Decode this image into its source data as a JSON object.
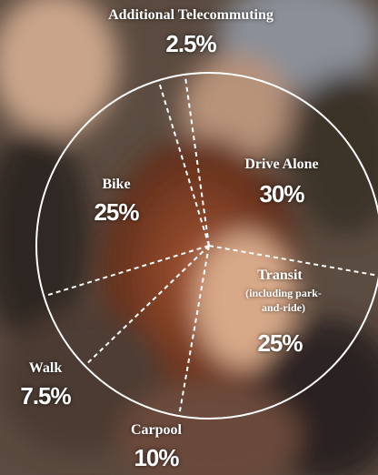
{
  "chart_data": {
    "type": "pie",
    "categories": [
      "Drive Alone",
      "Transit",
      "Carpool",
      "Walk",
      "Bike",
      "Additional Telecommuting"
    ],
    "values": [
      30,
      25,
      10,
      7.5,
      25,
      2.5
    ],
    "value_labels": [
      "30%",
      "25%",
      "10%",
      "7.5%",
      "25%",
      "2.5%"
    ],
    "annotations": [
      "(including park-and-ride)"
    ],
    "color": "#ffffff"
  }
}
